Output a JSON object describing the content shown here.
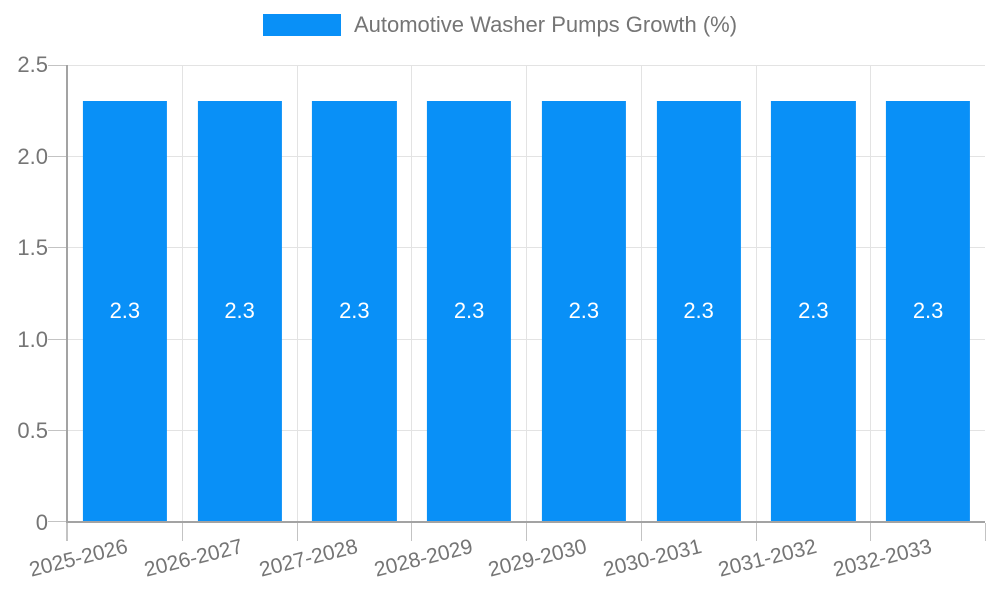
{
  "chart_data": {
    "type": "bar",
    "title": "Automotive Washer Pumps Growth (%)",
    "categories": [
      "2025-2026",
      "2026-2027",
      "2027-2028",
      "2028-2029",
      "2029-2030",
      "2030-2031",
      "2031-2032",
      "2032-2033"
    ],
    "values": [
      2.3,
      2.3,
      2.3,
      2.3,
      2.3,
      2.3,
      2.3,
      2.3
    ],
    "xlabel": "",
    "ylabel": "",
    "ylim": [
      0,
      2.5
    ],
    "ytick_labels": [
      "0",
      "0.5",
      "1.0",
      "1.5",
      "2.0",
      "2.5"
    ],
    "grid": true,
    "legend_position": "top-center",
    "bar_label_position": "inside-center",
    "colors": {
      "bar": "#0990f7",
      "bar_value_label": "#ffffff",
      "axis_line": "#a3a3a3",
      "gridline": "#e3e3e3",
      "tick_mark": "#c3c3c3",
      "tick_text": "#757575",
      "legend_text": "#757575",
      "background": "#ffffff"
    }
  },
  "legend": {
    "label": "Automotive Washer Pumps Growth (%)"
  }
}
